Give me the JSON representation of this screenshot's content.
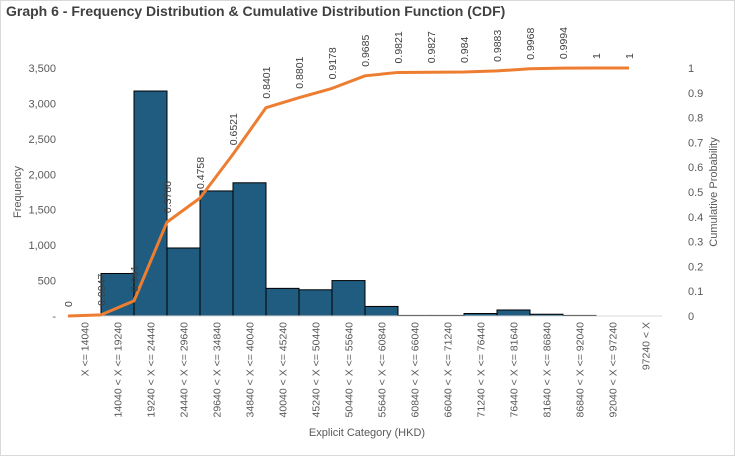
{
  "chart_data": {
    "type": "bar+line",
    "title": "Graph 6 - Frequency Distribution & Cumulative Distribution Function (CDF)",
    "xlabel": "Explicit Category (HKD)",
    "ylabel": "Frequency",
    "y2label": "Cumulative Probability",
    "categories": [
      "X <= 14040",
      "14040 < X <= 19240",
      "19240 < X <= 24440",
      "24440 < X <= 29640",
      "29640 < X <= 34840",
      "34840 < X <= 40040",
      "40040 < X <= 45240",
      "45240 < X <= 50440",
      "50440 < X <= 55640",
      "55640 < X <= 60840",
      "60840 < X <= 66040",
      "66040 < X <= 71240",
      "71240 < X <= 76440",
      "76440 < X <= 81640",
      "81640 < X <= 86840",
      "86840 < X <= 92040",
      "92040 < X <= 97240",
      "97240 < X"
    ],
    "series": [
      {
        "name": "Frequency",
        "type": "bar",
        "axis": "left",
        "color": "#1f5c7f",
        "values": [
          0,
          600,
          3175,
          960,
          1765,
          1880,
          390,
          370,
          500,
          135,
          8,
          8,
          35,
          85,
          25,
          8,
          0,
          0
        ]
      },
      {
        "name": "CDF",
        "type": "line",
        "axis": "right",
        "color": "#ed7d31",
        "values": [
          0,
          0.0047,
          0.061,
          0.3786,
          0.4758,
          0.6521,
          0.8401,
          0.8801,
          0.9178,
          0.9685,
          0.9821,
          0.9827,
          0.984,
          0.9883,
          0.9968,
          0.9994,
          1,
          1
        ],
        "labels": [
          "0",
          "0.0047",
          "0.061",
          "0.3786",
          "0.4758",
          "0.6521",
          "0.8401",
          "0.8801",
          "0.9178",
          "0.9685",
          "0.9821",
          "0.9827",
          "0.984",
          "0.9883",
          "0.9968",
          "0.9994",
          "1",
          "1"
        ]
      }
    ],
    "y_ticks": [
      "-",
      "500",
      "1,000",
      "1,500",
      "2,000",
      "2,500",
      "3,000",
      "3,500"
    ],
    "y_tick_values": [
      0,
      500,
      1000,
      1500,
      2000,
      2500,
      3000,
      3500
    ],
    "y2_ticks": [
      "0",
      "0.1",
      "0.2",
      "0.3",
      "0.4",
      "0.5",
      "0.6",
      "0.7",
      "0.8",
      "0.9",
      "1"
    ],
    "ylim": [
      0,
      3500
    ],
    "y2lim": [
      0,
      1
    ],
    "grid": false,
    "legend": "none"
  }
}
